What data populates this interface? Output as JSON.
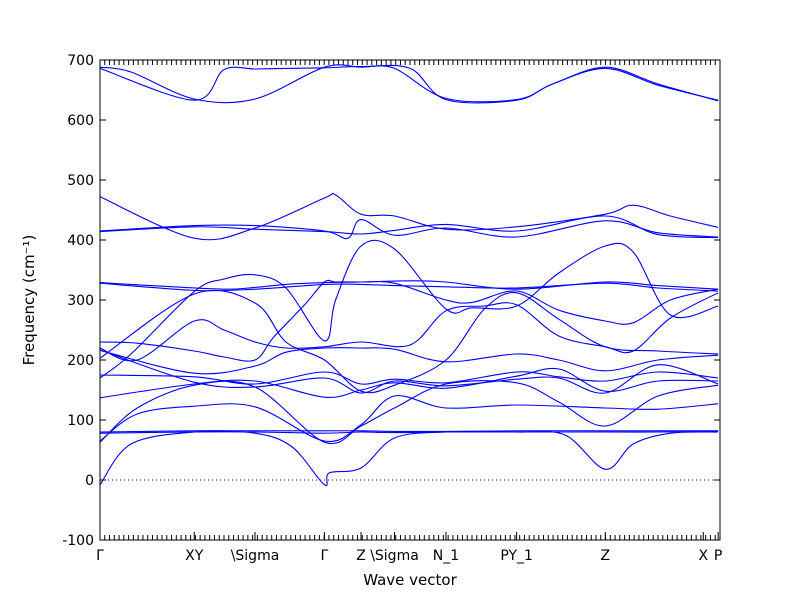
{
  "chart_data": {
    "type": "line",
    "xlabel": "Wave vector",
    "ylabel": "Frequency (cm⁻¹)",
    "ylim": [
      -100,
      700
    ],
    "xlim": [
      0,
      1
    ],
    "y_ticks": [
      -100,
      0,
      100,
      200,
      300,
      400,
      500,
      600,
      700
    ],
    "high_symmetry_points": [
      {
        "label": "Γ",
        "x": 0.0
      },
      {
        "label": "XY",
        "x": 0.152
      },
      {
        "label": "\\Sigma",
        "x": 0.25
      },
      {
        "label": "Γ",
        "x": 0.362
      },
      {
        "label": "Z",
        "x": 0.421
      },
      {
        "label": "\\Sigma",
        "x": 0.475
      },
      {
        "label": "N_1",
        "x": 0.558
      },
      {
        "label": "PY_1",
        "x": 0.672
      },
      {
        "label": "Z",
        "x": 0.815
      },
      {
        "label": "X",
        "x": 0.973
      },
      {
        "label": "P",
        "x": 0.997
      }
    ],
    "zero_line": {
      "y": 0,
      "style": "dotted"
    },
    "line_color": "#0000ff",
    "grid": false,
    "branches": [
      {
        "x": [
          0.0,
          0.05,
          0.152,
          0.25,
          0.362,
          0.421,
          0.475,
          0.558,
          0.672,
          0.73,
          0.815,
          0.9,
          0.997
        ],
        "y": [
          688,
          680,
          635,
          635,
          688,
          688,
          686,
          636,
          634,
          660,
          688,
          660,
          632
        ]
      },
      {
        "x": [
          0.0,
          0.152,
          0.2,
          0.25,
          0.3,
          0.362,
          0.421,
          0.5,
          0.558,
          0.672,
          0.73,
          0.815,
          0.9,
          0.997
        ],
        "y": [
          686,
          633,
          684,
          685,
          686,
          687,
          689,
          686,
          634,
          633,
          660,
          686,
          658,
          633
        ]
      },
      {
        "x": [
          0.0,
          0.152,
          0.25,
          0.362,
          0.38,
          0.421,
          0.475,
          0.558,
          0.672,
          0.815,
          0.86,
          0.92,
          0.997
        ],
        "y": [
          472,
          403,
          420,
          470,
          475,
          443,
          440,
          418,
          422,
          443,
          458,
          440,
          421
        ]
      },
      {
        "x": [
          0.0,
          0.152,
          0.25,
          0.362,
          0.4,
          0.421,
          0.475,
          0.558,
          0.672,
          0.815,
          0.9,
          0.997
        ],
        "y": [
          415,
          424,
          424,
          415,
          403,
          434,
          408,
          420,
          405,
          432,
          412,
          405
        ]
      },
      {
        "x": [
          0.0,
          0.152,
          0.25,
          0.362,
          0.421,
          0.475,
          0.558,
          0.672,
          0.815,
          0.9,
          0.997
        ],
        "y": [
          414,
          422,
          418,
          414,
          410,
          416,
          426,
          415,
          440,
          409,
          404
        ]
      },
      {
        "x": [
          0.0,
          0.1,
          0.2,
          0.25,
          0.3,
          0.362,
          0.421,
          0.5,
          0.558,
          0.672,
          0.815,
          0.9,
          0.997
        ],
        "y": [
          329,
          323,
          318,
          321,
          326,
          329,
          330,
          332,
          330,
          318,
          330,
          324,
          318
        ]
      },
      {
        "x": [
          0.0,
          0.152,
          0.25,
          0.362,
          0.421,
          0.475,
          0.558,
          0.672,
          0.815,
          0.9,
          0.997
        ],
        "y": [
          328,
          316,
          318,
          326,
          326,
          324,
          322,
          320,
          328,
          320,
          315
        ]
      },
      {
        "x": [
          0.0,
          0.06,
          0.152,
          0.2,
          0.25,
          0.28,
          0.33,
          0.362,
          0.38,
          0.421,
          0.475,
          0.558,
          0.6,
          0.672,
          0.74,
          0.815,
          0.86,
          0.92,
          0.997
        ],
        "y": [
          230,
          228,
          215,
          205,
          200,
          238,
          292,
          330,
          330,
          330,
          328,
          300,
          296,
          315,
          283,
          265,
          262,
          300,
          318
        ]
      },
      {
        "x": [
          0.0,
          0.05,
          0.152,
          0.2,
          0.25,
          0.3,
          0.362,
          0.38,
          0.421,
          0.475,
          0.558,
          0.6,
          0.672,
          0.74,
          0.815,
          0.86,
          0.92,
          0.997
        ],
        "y": [
          170,
          210,
          314,
          335,
          342,
          320,
          232,
          300,
          390,
          385,
          285,
          287,
          290,
          345,
          390,
          380,
          275,
          290
        ]
      },
      {
        "x": [
          0.0,
          0.06,
          0.152,
          0.2,
          0.25,
          0.3,
          0.362,
          0.421,
          0.5,
          0.558,
          0.62,
          0.672,
          0.74,
          0.815,
          0.86,
          0.92,
          0.997
        ],
        "y": [
          220,
          200,
          265,
          250,
          230,
          220,
          222,
          230,
          225,
          282,
          290,
          292,
          240,
          222,
          215,
          270,
          312
        ]
      },
      {
        "x": [
          0.0,
          0.152,
          0.25,
          0.3,
          0.362,
          0.421,
          0.475,
          0.558,
          0.62,
          0.672,
          0.74,
          0.815,
          0.9,
          0.997
        ],
        "y": [
          203,
          310,
          295,
          230,
          200,
          148,
          158,
          200,
          285,
          312,
          268,
          222,
          215,
          210
        ]
      },
      {
        "x": [
          0.0,
          0.152,
          0.25,
          0.3,
          0.362,
          0.421,
          0.475,
          0.558,
          0.672,
          0.74,
          0.815,
          0.9,
          0.997
        ],
        "y": [
          216,
          178,
          190,
          213,
          220,
          220,
          218,
          197,
          210,
          200,
          182,
          200,
          208
        ]
      },
      {
        "x": [
          0.0,
          0.152,
          0.25,
          0.362,
          0.421,
          0.475,
          0.558,
          0.672,
          0.74,
          0.815,
          0.9,
          0.997
        ],
        "y": [
          217,
          163,
          155,
          170,
          145,
          165,
          157,
          168,
          170,
          145,
          192,
          160
        ]
      },
      {
        "x": [
          0.0,
          0.152,
          0.25,
          0.362,
          0.421,
          0.475,
          0.558,
          0.672,
          0.74,
          0.815,
          0.9,
          0.997
        ],
        "y": [
          137,
          160,
          165,
          138,
          150,
          162,
          153,
          173,
          185,
          148,
          165,
          165
        ]
      },
      {
        "x": [
          0.0,
          0.152,
          0.25,
          0.362,
          0.421,
          0.475,
          0.558,
          0.672,
          0.74,
          0.815,
          0.9,
          0.997
        ],
        "y": [
          175,
          172,
          160,
          180,
          160,
          168,
          162,
          180,
          172,
          165,
          180,
          170
        ]
      },
      {
        "x": [
          0.0,
          0.06,
          0.152,
          0.25,
          0.362,
          0.421,
          0.475,
          0.558,
          0.672,
          0.815,
          0.9,
          0.997
        ],
        "y": [
          65,
          110,
          123,
          122,
          65,
          92,
          140,
          120,
          125,
          120,
          118,
          127
        ]
      },
      {
        "x": [
          0.0,
          0.06,
          0.152,
          0.25,
          0.362,
          0.421,
          0.475,
          0.558,
          0.672,
          0.74,
          0.815,
          0.9,
          0.997
        ],
        "y": [
          63,
          120,
          158,
          155,
          63,
          90,
          120,
          160,
          162,
          130,
          90,
          140,
          158
        ]
      },
      {
        "x": [
          0.0,
          0.152,
          0.25,
          0.362,
          0.421,
          0.475,
          0.558,
          0.672,
          0.815,
          0.9,
          0.997
        ],
        "y": [
          80,
          82,
          82,
          82,
          82,
          81,
          81,
          82,
          82,
          82,
          82
        ]
      },
      {
        "x": [
          0.0,
          0.152,
          0.25,
          0.362,
          0.421,
          0.475,
          0.558,
          0.672,
          0.815,
          0.9,
          0.997
        ],
        "y": [
          78,
          80,
          80,
          78,
          80,
          79,
          80,
          80,
          80,
          80,
          81
        ]
      },
      {
        "x": [
          0.0,
          0.05,
          0.152,
          0.25,
          0.31,
          0.362,
          0.37,
          0.421,
          0.475,
          0.558,
          0.672,
          0.75,
          0.815,
          0.86,
          0.92,
          0.997
        ],
        "y": [
          -8,
          60,
          80,
          78,
          55,
          -8,
          12,
          20,
          70,
          80,
          80,
          75,
          18,
          60,
          78,
          80
        ]
      }
    ]
  }
}
